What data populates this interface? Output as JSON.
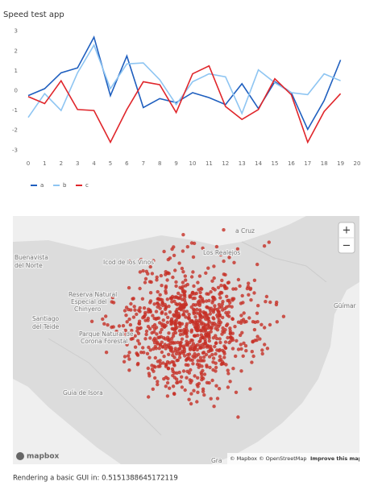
{
  "header": {
    "title": "Speed test app"
  },
  "chart_data": {
    "type": "line",
    "x": [
      0,
      1,
      2,
      3,
      4,
      5,
      6,
      7,
      8,
      9,
      10,
      11,
      12,
      13,
      14,
      15,
      16,
      17,
      18,
      19
    ],
    "xlim": [
      0,
      20
    ],
    "xticks": [
      0,
      1,
      2,
      3,
      4,
      5,
      6,
      7,
      8,
      9,
      10,
      11,
      12,
      13,
      14,
      15,
      16,
      17,
      18,
      19,
      20
    ],
    "ylim": [
      -3.15,
      3.15
    ],
    "yticks": [
      -3,
      -2,
      -1,
      0,
      1,
      2,
      3
    ],
    "grid": false,
    "series": [
      {
        "name": "a",
        "color": "#1f5fbf",
        "values": [
          -0.25,
          0.1,
          0.9,
          1.15,
          2.7,
          -0.25,
          1.75,
          -0.85,
          -0.4,
          -0.6,
          -0.1,
          -0.35,
          -0.7,
          0.35,
          -0.9,
          0.45,
          -0.1,
          -1.95,
          -0.5,
          1.55
        ]
      },
      {
        "name": "b",
        "color": "#8ec5f2",
        "values": [
          -1.35,
          -0.15,
          -1.0,
          0.9,
          2.3,
          0.1,
          1.35,
          1.4,
          0.55,
          -0.7,
          0.45,
          0.85,
          0.7,
          -1.15,
          1.05,
          0.4,
          -0.1,
          -0.2,
          0.85,
          0.5
        ]
      },
      {
        "name": "c",
        "color": "#e0262b",
        "values": [
          -0.3,
          -0.65,
          0.5,
          -0.95,
          -1.0,
          -2.6,
          -0.95,
          0.45,
          0.3,
          -1.1,
          0.85,
          1.25,
          -0.8,
          -1.45,
          -0.95,
          0.6,
          -0.2,
          -2.6,
          -1.05,
          -0.15
        ]
      }
    ]
  },
  "map": {
    "labels": [
      "Buenavista",
      "del Norte",
      "Icod de los Vinos",
      "Los Realejos",
      "a Cruz",
      "Reserva Natural",
      "Especial del",
      "Chinyero",
      "Santiago",
      "del Teide",
      "Parque Natural de",
      "Corona Forestal",
      "Güímar",
      "Guía de Isora",
      "Gra"
    ],
    "zoom_in": "+",
    "zoom_out": "−",
    "logo": "mapbox",
    "attribution": "© Mapbox © OpenStreetMap",
    "improve": "Improve this map"
  },
  "footer": {
    "text": "Rendering a basic GUI in: 0.5151388645172119"
  }
}
